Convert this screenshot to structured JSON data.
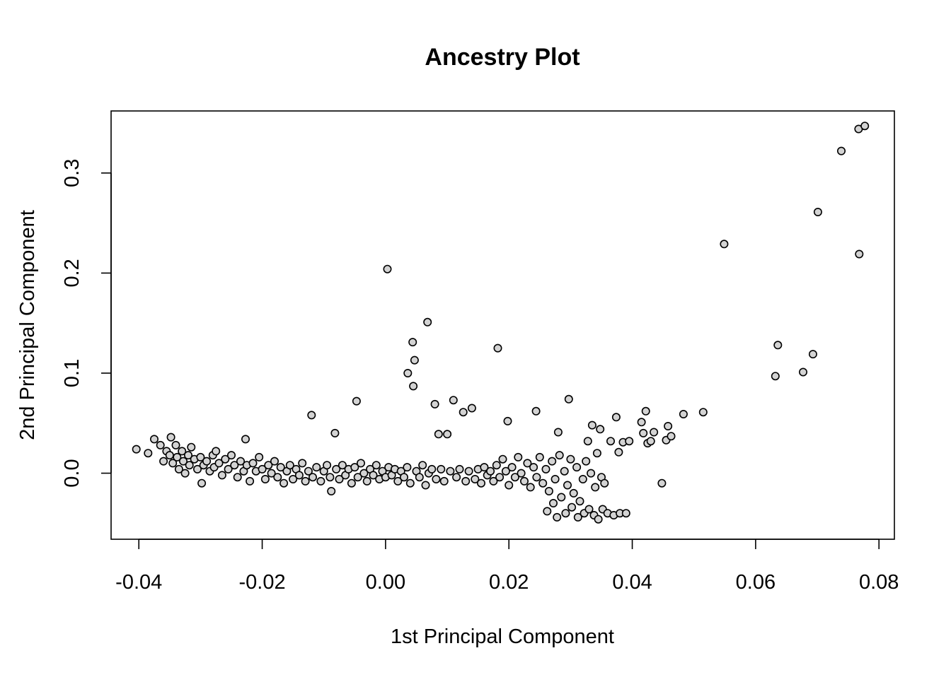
{
  "chart_data": {
    "type": "scatter",
    "title": "Ancestry Plot",
    "xlabel": "1st Principal Component",
    "ylabel": "2nd Principal Component",
    "xlim": [
      -0.0445,
      0.0825
    ],
    "ylim": [
      -0.066,
      0.362
    ],
    "xticks": [
      -0.04,
      -0.02,
      0.0,
      0.02,
      0.04,
      0.06,
      0.08
    ],
    "xtick_labels": [
      "-0.04",
      "-0.02",
      "0.00",
      "0.02",
      "0.04",
      "0.06",
      "0.08"
    ],
    "yticks": [
      0.0,
      0.1,
      0.2,
      0.3
    ],
    "ytick_labels": [
      "0.0",
      "0.1",
      "0.2",
      "0.3"
    ],
    "grid": false,
    "legend": "none",
    "marker_fill": "#d3d3d3",
    "marker_edge": "#000000",
    "points": [
      [
        -0.0404,
        0.024
      ],
      [
        -0.0385,
        0.02
      ],
      [
        -0.0375,
        0.034
      ],
      [
        -0.0365,
        0.028
      ],
      [
        -0.036,
        0.012
      ],
      [
        -0.0355,
        0.022
      ],
      [
        -0.035,
        0.018
      ],
      [
        -0.0348,
        0.036
      ],
      [
        -0.0345,
        0.01
      ],
      [
        -0.034,
        0.028
      ],
      [
        -0.0338,
        0.016
      ],
      [
        -0.0335,
        0.004
      ],
      [
        -0.033,
        0.022
      ],
      [
        -0.0328,
        0.012
      ],
      [
        -0.0325,
        0.0
      ],
      [
        -0.032,
        0.018
      ],
      [
        -0.0318,
        0.008
      ],
      [
        -0.0315,
        0.026
      ],
      [
        -0.031,
        0.014
      ],
      [
        -0.0305,
        0.004
      ],
      [
        -0.03,
        0.016
      ],
      [
        -0.0298,
        -0.01
      ],
      [
        -0.0295,
        0.008
      ],
      [
        -0.029,
        0.012
      ],
      [
        -0.0285,
        0.002
      ],
      [
        -0.028,
        0.018
      ],
      [
        -0.0278,
        0.006
      ],
      [
        -0.0275,
        0.022
      ],
      [
        -0.027,
        0.01
      ],
      [
        -0.0265,
        -0.002
      ],
      [
        -0.026,
        0.014
      ],
      [
        -0.0255,
        0.004
      ],
      [
        -0.025,
        0.018
      ],
      [
        -0.0245,
        0.008
      ],
      [
        -0.024,
        -0.004
      ],
      [
        -0.0235,
        0.012
      ],
      [
        -0.023,
        0.002
      ],
      [
        -0.0227,
        0.034
      ],
      [
        -0.0225,
        0.008
      ],
      [
        -0.022,
        -0.008
      ],
      [
        -0.0215,
        0.01
      ],
      [
        -0.021,
        0.002
      ],
      [
        -0.0205,
        0.016
      ],
      [
        -0.02,
        0.004
      ],
      [
        -0.0195,
        -0.006
      ],
      [
        -0.019,
        0.008
      ],
      [
        -0.0185,
        0.0
      ],
      [
        -0.018,
        0.012
      ],
      [
        -0.0175,
        -0.004
      ],
      [
        -0.017,
        0.006
      ],
      [
        -0.0165,
        -0.01
      ],
      [
        -0.016,
        0.002
      ],
      [
        -0.0155,
        0.008
      ],
      [
        -0.015,
        -0.006
      ],
      [
        -0.0145,
        0.004
      ],
      [
        -0.014,
        -0.002
      ],
      [
        -0.0135,
        0.01
      ],
      [
        -0.013,
        -0.008
      ],
      [
        -0.0125,
        0.002
      ],
      [
        -0.012,
        0.058
      ],
      [
        -0.0118,
        -0.004
      ],
      [
        -0.0112,
        0.006
      ],
      [
        -0.0105,
        -0.008
      ],
      [
        -0.01,
        0.002
      ],
      [
        -0.0095,
        0.008
      ],
      [
        -0.009,
        -0.004
      ],
      [
        -0.0088,
        -0.018
      ],
      [
        -0.0082,
        0.04
      ],
      [
        -0.008,
        0.004
      ],
      [
        -0.0075,
        -0.006
      ],
      [
        -0.007,
        0.008
      ],
      [
        -0.0065,
        -0.002
      ],
      [
        -0.006,
        0.004
      ],
      [
        -0.0055,
        -0.01
      ],
      [
        -0.005,
        0.006
      ],
      [
        -0.0047,
        0.072
      ],
      [
        -0.0045,
        -0.004
      ],
      [
        -0.004,
        0.01
      ],
      [
        -0.0035,
        0.0
      ],
      [
        -0.003,
        -0.008
      ],
      [
        -0.0025,
        0.004
      ],
      [
        -0.002,
        -0.002
      ],
      [
        -0.0015,
        0.008
      ],
      [
        -0.001,
        -0.006
      ],
      [
        -0.0005,
        0.002
      ],
      [
        0.0,
        -0.004
      ],
      [
        0.0003,
        0.204
      ],
      [
        0.0005,
        0.006
      ],
      [
        0.001,
        -0.002
      ],
      [
        0.0015,
        0.004
      ],
      [
        0.002,
        -0.008
      ],
      [
        0.0025,
        0.002
      ],
      [
        0.003,
        -0.004
      ],
      [
        0.0035,
        0.006
      ],
      [
        0.0036,
        0.1
      ],
      [
        0.004,
        -0.01
      ],
      [
        0.0044,
        0.131
      ],
      [
        0.0045,
        0.087
      ],
      [
        0.0047,
        0.113
      ],
      [
        0.005,
        0.002
      ],
      [
        0.0055,
        -0.004
      ],
      [
        0.006,
        0.008
      ],
      [
        0.0065,
        -0.012
      ],
      [
        0.0068,
        0.151
      ],
      [
        0.007,
        0.0
      ],
      [
        0.0075,
        0.004
      ],
      [
        0.008,
        0.069
      ],
      [
        0.0082,
        -0.006
      ],
      [
        0.0086,
        0.039
      ],
      [
        0.009,
        0.004
      ],
      [
        0.0095,
        -0.008
      ],
      [
        0.01,
        0.039
      ],
      [
        0.0105,
        0.002
      ],
      [
        0.011,
        0.073
      ],
      [
        0.0115,
        -0.004
      ],
      [
        0.012,
        0.004
      ],
      [
        0.0126,
        0.061
      ],
      [
        0.013,
        -0.008
      ],
      [
        0.0135,
        0.002
      ],
      [
        0.014,
        0.065
      ],
      [
        0.0145,
        -0.006
      ],
      [
        0.015,
        0.004
      ],
      [
        0.0155,
        -0.01
      ],
      [
        0.016,
        0.006
      ],
      [
        0.0165,
        -0.002
      ],
      [
        0.017,
        0.002
      ],
      [
        0.0175,
        -0.008
      ],
      [
        0.018,
        0.008
      ],
      [
        0.0182,
        0.125
      ],
      [
        0.0185,
        -0.004
      ],
      [
        0.019,
        0.014
      ],
      [
        0.0195,
        0.002
      ],
      [
        0.0198,
        0.052
      ],
      [
        0.02,
        -0.012
      ],
      [
        0.0205,
        0.006
      ],
      [
        0.021,
        -0.004
      ],
      [
        0.0215,
        0.016
      ],
      [
        0.022,
        0.0
      ],
      [
        0.0225,
        -0.008
      ],
      [
        0.023,
        0.01
      ],
      [
        0.0235,
        -0.014
      ],
      [
        0.024,
        0.006
      ],
      [
        0.0244,
        0.062
      ],
      [
        0.0245,
        -0.004
      ],
      [
        0.025,
        0.016
      ],
      [
        0.0255,
        -0.01
      ],
      [
        0.026,
        0.004
      ],
      [
        0.0262,
        -0.038
      ],
      [
        0.0265,
        -0.018
      ],
      [
        0.027,
        0.012
      ],
      [
        0.0272,
        -0.03
      ],
      [
        0.0275,
        -0.006
      ],
      [
        0.0278,
        -0.044
      ],
      [
        0.028,
        0.041
      ],
      [
        0.0282,
        0.018
      ],
      [
        0.0285,
        -0.024
      ],
      [
        0.029,
        0.002
      ],
      [
        0.0292,
        -0.04
      ],
      [
        0.0295,
        -0.012
      ],
      [
        0.0297,
        0.074
      ],
      [
        0.03,
        0.014
      ],
      [
        0.0302,
        -0.034
      ],
      [
        0.0305,
        -0.02
      ],
      [
        0.031,
        0.006
      ],
      [
        0.0312,
        -0.044
      ],
      [
        0.0315,
        -0.028
      ],
      [
        0.032,
        -0.006
      ],
      [
        0.0322,
        -0.04
      ],
      [
        0.0325,
        0.012
      ],
      [
        0.0328,
        0.032
      ],
      [
        0.033,
        -0.036
      ],
      [
        0.0333,
        0.0
      ],
      [
        0.0335,
        0.048
      ],
      [
        0.0338,
        -0.042
      ],
      [
        0.034,
        -0.014
      ],
      [
        0.0343,
        0.02
      ],
      [
        0.0345,
        -0.046
      ],
      [
        0.0348,
        0.044
      ],
      [
        0.035,
        -0.004
      ],
      [
        0.0352,
        -0.036
      ],
      [
        0.0355,
        -0.01
      ],
      [
        0.036,
        -0.04
      ],
      [
        0.0365,
        0.032
      ],
      [
        0.037,
        -0.042
      ],
      [
        0.0374,
        0.056
      ],
      [
        0.0378,
        0.021
      ],
      [
        0.038,
        -0.04
      ],
      [
        0.0385,
        0.031
      ],
      [
        0.039,
        -0.04
      ],
      [
        0.0395,
        0.032
      ],
      [
        0.0415,
        0.051
      ],
      [
        0.0418,
        0.04
      ],
      [
        0.0422,
        0.062
      ],
      [
        0.0425,
        0.03
      ],
      [
        0.043,
        0.032
      ],
      [
        0.0435,
        0.041
      ],
      [
        0.0448,
        -0.01
      ],
      [
        0.0455,
        0.033
      ],
      [
        0.0458,
        0.047
      ],
      [
        0.0463,
        0.037
      ],
      [
        0.0483,
        0.059
      ],
      [
        0.0515,
        0.061
      ],
      [
        0.0549,
        0.229
      ],
      [
        0.0632,
        0.097
      ],
      [
        0.0636,
        0.128
      ],
      [
        0.0677,
        0.101
      ],
      [
        0.0693,
        0.119
      ],
      [
        0.0701,
        0.261
      ],
      [
        0.0739,
        0.322
      ],
      [
        0.0767,
        0.344
      ],
      [
        0.0768,
        0.219
      ],
      [
        0.0777,
        0.347
      ]
    ]
  }
}
